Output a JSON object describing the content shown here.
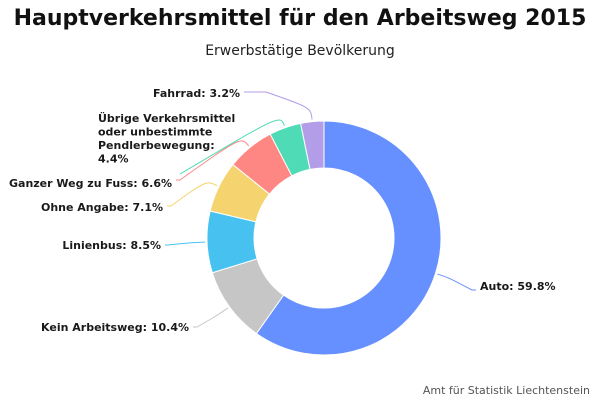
{
  "chart_data": {
    "type": "pie",
    "title": "Hauptverkehrsmittel für den Arbeitsweg 2015",
    "subtitle": "Erwerbstätige Bevölkerung",
    "credit": "Amt für Statistik Liechtenstein",
    "donut": true,
    "slices": [
      {
        "name": "Auto",
        "value": 59.8,
        "color": "#6690ff",
        "label": [
          "Auto: 59.8%"
        ]
      },
      {
        "name": "Kein Arbeitsweg",
        "value": 10.4,
        "color": "#c6c6c6",
        "label": [
          "Kein Arbeitsweg: 10.4%"
        ]
      },
      {
        "name": "Linienbus",
        "value": 8.5,
        "color": "#47c2f0",
        "label": [
          "Linienbus: 8.5%"
        ]
      },
      {
        "name": "Ohne Angabe",
        "value": 7.1,
        "color": "#f5d36e",
        "label": [
          "Ohne Angabe: 7.1%"
        ]
      },
      {
        "name": "Ganzer Weg zu Fuss",
        "value": 6.6,
        "color": "#fe8784",
        "label": [
          "Ganzer Weg zu Fuss: 6.6%"
        ]
      },
      {
        "name": "Übrige Verkehrsmittel oder unbestimmte Pendlerbewegung",
        "value": 4.4,
        "color": "#4fdbb5",
        "label": [
          "Übrige Verkehrsmittel",
          "oder unbestimmte",
          "Pendlerbewegung:",
          "4.4%"
        ]
      },
      {
        "name": "Fahrrad",
        "value": 3.2,
        "color": "#b39ce8",
        "label": [
          "Fahrrad: 3.2%"
        ]
      }
    ]
  }
}
